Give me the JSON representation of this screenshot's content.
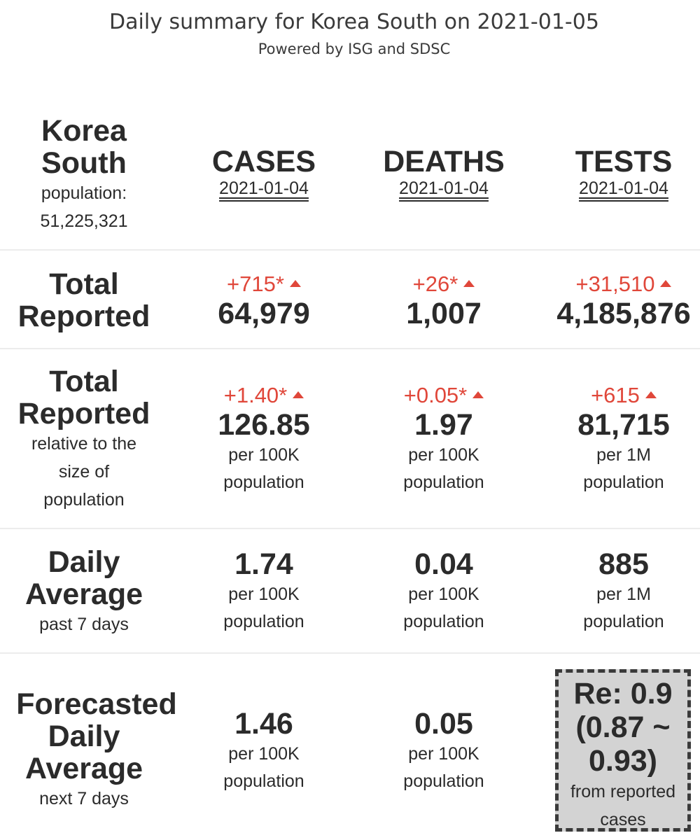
{
  "header": {
    "title": "Daily summary for Korea South on 2021-01-05",
    "subtitle": "Powered by ISG and SDSC"
  },
  "country": {
    "name_line1": "Korea",
    "name_line2": "South",
    "population_label": "population:",
    "population_value": "51,225,321"
  },
  "columns": {
    "cases": {
      "label": "CASES",
      "date": "2021-01-04"
    },
    "deaths": {
      "label": "DEATHS",
      "date": "2021-01-04"
    },
    "tests": {
      "label": "TESTS",
      "date": "2021-01-04"
    }
  },
  "total_reported": {
    "label_line1": "Total",
    "label_line2": "Reported",
    "cases": {
      "delta": "+715*",
      "value": "64,979"
    },
    "deaths": {
      "delta": "+26*",
      "value": "1,007"
    },
    "tests": {
      "delta": "+31,510",
      "value": "4,185,876"
    }
  },
  "relative": {
    "label_line1": "Total",
    "label_line2": "Reported",
    "sub_line1": "relative to the",
    "sub_line2": "size of",
    "sub_line3": "population",
    "cases": {
      "delta": "+1.40*",
      "value": "126.85",
      "unit1": "per 100K",
      "unit2": "population"
    },
    "deaths": {
      "delta": "+0.05*",
      "value": "1.97",
      "unit1": "per 100K",
      "unit2": "population"
    },
    "tests": {
      "delta": "+615",
      "value": "81,715",
      "unit1": "per 1M",
      "unit2": "population"
    }
  },
  "daily_average": {
    "label_line1": "Daily",
    "label_line2": "Average",
    "sub": "past 7 days",
    "cases": {
      "value": "1.74",
      "unit1": "per 100K",
      "unit2": "population"
    },
    "deaths": {
      "value": "0.04",
      "unit1": "per 100K",
      "unit2": "population"
    },
    "tests": {
      "value": "885",
      "unit1": "per 1M",
      "unit2": "population"
    }
  },
  "forecast": {
    "label_line1": "Forecasted",
    "label_line2": "Daily",
    "label_line3": "Average",
    "sub": "next 7 days",
    "cases": {
      "value": "1.46",
      "unit1": "per 100K",
      "unit2": "population"
    },
    "deaths": {
      "value": "0.05",
      "unit1": "per 100K",
      "unit2": "population"
    },
    "re": {
      "line1": "Re: 0.9",
      "line2": "(0.87 ~",
      "line3": "0.93)",
      "sub1": "from reported",
      "sub2": "cases"
    }
  },
  "colors": {
    "delta": "#e0473a",
    "text": "#2b2b2b",
    "re_box_bg": "#d3d3d3"
  },
  "icons": {
    "delta_indicator": "triangle-up-icon"
  }
}
